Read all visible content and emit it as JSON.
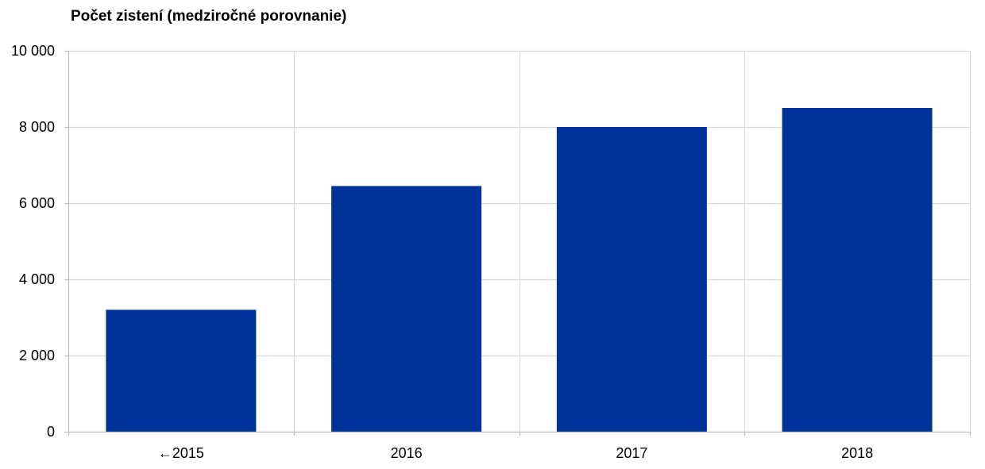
{
  "chart_data": {
    "type": "bar",
    "title": "Počet zistení (medziročné porovnanie)",
    "categories": [
      "←2015",
      "2016",
      "2017",
      "2018"
    ],
    "values": [
      3200,
      6450,
      8000,
      8500
    ],
    "ylim": [
      0,
      10000
    ],
    "yticks": [
      0,
      2000,
      4000,
      6000,
      8000,
      10000
    ],
    "ytick_labels": [
      "0",
      "2 000",
      "4 000",
      "6 000",
      "8 000",
      "10 000"
    ],
    "xlabel": "",
    "ylabel": "",
    "grid": true,
    "bar_color": "#003399",
    "grid_color": "#d9d9d9"
  }
}
